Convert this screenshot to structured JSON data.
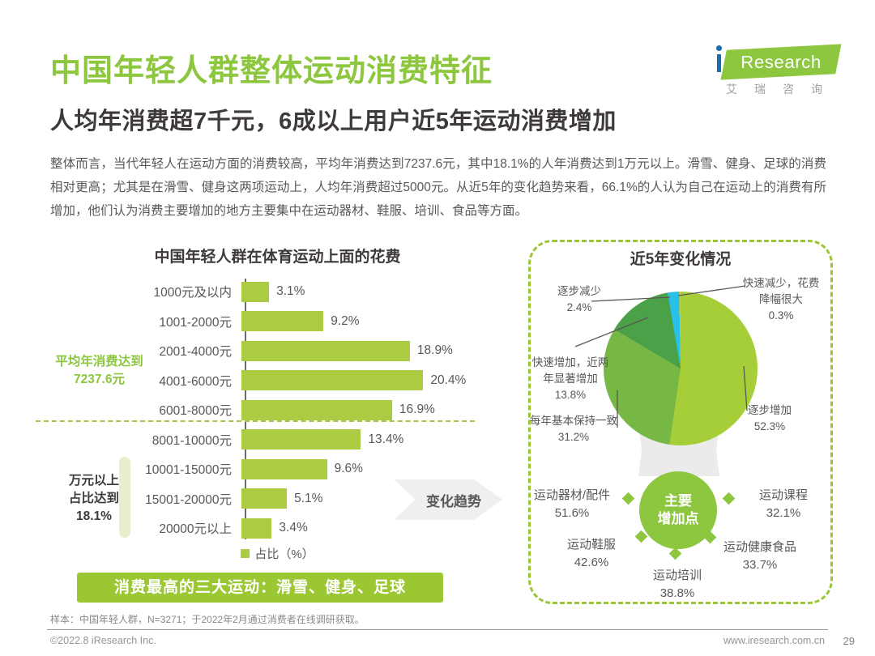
{
  "header": {
    "title": "中国年轻人群整体运动消费特征",
    "subtitle": "人均年消费超7千元，6成以上用户近5年运动消费增加",
    "body": "整体而言，当代年轻人在运动方面的消费较高，平均年消费达到7237.6元，其中18.1%的人年消费达到1万元以上。滑雪、健身、足球的消费相对更高；尤其是在滑雪、健身这两项运动上，人均年消费超过5000元。从近5年的变化趋势来看，66.1%的人认为自己在运动上的消费有所增加，他们认为消费主要增加的地方主要集中在运动器材、鞋服、培训、食品等方面。"
  },
  "logo": {
    "i": "i",
    "brand": "Research",
    "cn": "艾瑞咨询"
  },
  "colors": {
    "brand_green": "#8dc63f",
    "bar_green": "#abcb42",
    "banner_green": "#9bc832",
    "pie_lime": "#a6ce39",
    "pie_mid_green": "#76b843",
    "pie_dark_green": "#4aa147",
    "pie_cyan": "#29c1ea",
    "pie_yellow": "#f2c011"
  },
  "left_chart": {
    "title": "中国年轻人群在体育运动上面的花费",
    "legend": "占比（%）",
    "avg_note_line1": "平均年消费达到",
    "avg_note_line2": "7237.6元",
    "tenk_note_line1": "万元以上",
    "tenk_note_line2": "占比达到",
    "tenk_note_line3": "18.1%",
    "banner": "消费最高的三大运动：滑雪、健身、足球"
  },
  "arrow_label": "变化趋势",
  "right_panel": {
    "title": "近5年变化情况",
    "center_line1": "主要",
    "center_line2": "增加点"
  },
  "footer": {
    "note": "样本：中国年轻人群，N=3271；于2022年2月通过消费者在线调研获取。",
    "copyright": "©2022.8 iResearch Inc.",
    "site": "www.iresearch.com.cn",
    "page": "29"
  },
  "chart_data": [
    {
      "type": "bar",
      "orientation": "horizontal",
      "title": "中国年轻人群在体育运动上面的花费",
      "categories": [
        "1000元及以内",
        "1001-2000元",
        "2001-4000元",
        "4001-6000元",
        "6001-8000元",
        "8001-10000元",
        "10001-15000元",
        "15001-20000元",
        "20000元以上"
      ],
      "values": [
        3.1,
        9.2,
        18.9,
        20.4,
        16.9,
        13.4,
        9.6,
        5.1,
        3.4
      ],
      "xlabel": "占比（%）",
      "xlim": [
        0,
        22
      ],
      "annotations": [
        "平均年消费达到7237.6元",
        "万元以上占比达到18.1%"
      ]
    },
    {
      "type": "pie",
      "title": "近5年变化情况",
      "labels": [
        "逐步增加",
        "每年基本保持一致",
        "快速增加，近两年显著增加",
        "逐步减少",
        "快速减少，花费降幅很大"
      ],
      "values": [
        52.3,
        31.2,
        13.8,
        2.4,
        0.3
      ],
      "colors": [
        "#a6ce39",
        "#76b843",
        "#4aa147",
        "#29c1ea",
        "#f2c011"
      ],
      "start_angle": "top",
      "direction": "clockwise"
    },
    {
      "type": "bar",
      "title": "主要增加点",
      "categories": [
        "运动器材/配件",
        "运动课程",
        "运动鞋服",
        "运动健康食品",
        "运动培训"
      ],
      "values": [
        51.6,
        32.1,
        42.6,
        33.7,
        38.8
      ]
    }
  ]
}
